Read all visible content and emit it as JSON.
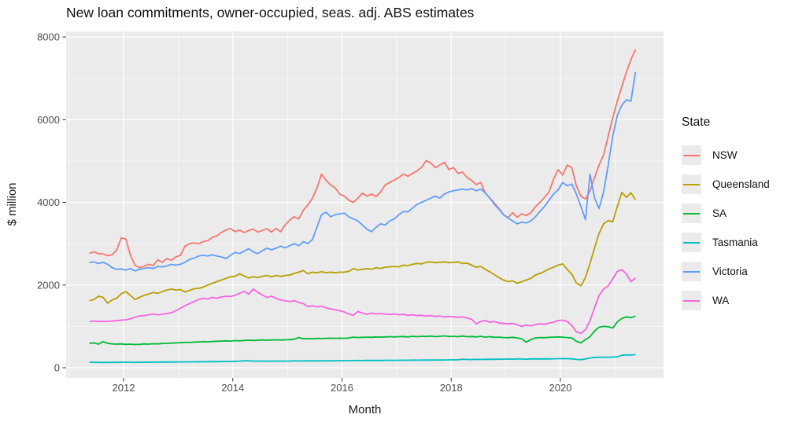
{
  "title": "New loan commitments, owner-occupied, seas. adj. ABS estimates",
  "panel": {
    "bg": "#EBEBEB",
    "grid_color": "#FFFFFF",
    "tick_color": "#333333"
  },
  "axes": {
    "x": {
      "label": "Month",
      "ticks": [
        {
          "v": 2012,
          "label": "2012"
        },
        {
          "v": 2014,
          "label": "2014"
        },
        {
          "v": 2016,
          "label": "2016"
        },
        {
          "v": 2018,
          "label": "2018"
        },
        {
          "v": 2020,
          "label": "2020"
        }
      ],
      "minor": [
        2011,
        2013,
        2015,
        2017,
        2019,
        2021
      ]
    },
    "y": {
      "label": "$ million",
      "ticks": [
        {
          "v": 0,
          "label": "0"
        },
        {
          "v": 2000,
          "label": "2000"
        },
        {
          "v": 4000,
          "label": "4000"
        },
        {
          "v": 6000,
          "label": "6000"
        },
        {
          "v": 8000,
          "label": "8000"
        }
      ],
      "minor": [
        1000,
        3000,
        5000,
        7000
      ]
    }
  },
  "legend": {
    "title": "State",
    "entries": [
      {
        "label": "NSW",
        "color": "#F8766D"
      },
      {
        "label": "Queensland",
        "color": "#B79F00"
      },
      {
        "label": "SA",
        "color": "#00BA38"
      },
      {
        "label": "Tasmania",
        "color": "#00BFC4"
      },
      {
        "label": "Victoria",
        "color": "#619CFF"
      },
      {
        "label": "WA",
        "color": "#F564E2"
      }
    ]
  },
  "chart_data": {
    "type": "line",
    "title": "New loan commitments, owner-occupied, seas. adj. ABS estimates",
    "xlabel": "Month",
    "ylabel": "$ million",
    "x_start": "2011-05",
    "x_end": "2021-05",
    "x_freq": "monthly",
    "xlim": [
      2010.96,
      2021.96
    ],
    "ylim": [
      -280,
      8140
    ],
    "grid": true,
    "legend_position": "right",
    "series": [
      {
        "name": "NSW",
        "color": "#F8766D",
        "values": [
          2770,
          2800,
          2760,
          2750,
          2710,
          2730,
          2850,
          3140,
          3110,
          2720,
          2480,
          2420,
          2450,
          2500,
          2470,
          2610,
          2550,
          2640,
          2600,
          2680,
          2720,
          2940,
          3000,
          3020,
          3000,
          3050,
          3070,
          3150,
          3190,
          3270,
          3330,
          3370,
          3290,
          3330,
          3270,
          3320,
          3350,
          3280,
          3320,
          3360,
          3280,
          3370,
          3290,
          3450,
          3570,
          3650,
          3600,
          3810,
          3940,
          4100,
          4350,
          4680,
          4530,
          4420,
          4350,
          4200,
          4150,
          4050,
          4000,
          4100,
          4220,
          4150,
          4200,
          4140,
          4250,
          4420,
          4480,
          4540,
          4600,
          4680,
          4630,
          4700,
          4760,
          4850,
          5010,
          4950,
          4840,
          4900,
          4970,
          4790,
          4840,
          4700,
          4730,
          4600,
          4530,
          4430,
          4480,
          4220,
          4100,
          3980,
          3850,
          3700,
          3630,
          3750,
          3640,
          3720,
          3680,
          3750,
          3890,
          4000,
          4120,
          4250,
          4560,
          4790,
          4660,
          4900,
          4840,
          4400,
          4150,
          4080,
          4270,
          4600,
          4900,
          5150,
          5600,
          6050,
          6450,
          6800,
          7150,
          7450,
          7700
        ]
      },
      {
        "name": "Queensland",
        "color": "#B79F00",
        "values": [
          1620,
          1650,
          1730,
          1700,
          1560,
          1640,
          1680,
          1790,
          1840,
          1750,
          1650,
          1700,
          1750,
          1780,
          1820,
          1800,
          1840,
          1880,
          1900,
          1880,
          1890,
          1830,
          1870,
          1910,
          1920,
          1950,
          2000,
          2040,
          2080,
          2120,
          2160,
          2200,
          2210,
          2270,
          2220,
          2170,
          2200,
          2180,
          2210,
          2230,
          2200,
          2230,
          2210,
          2230,
          2240,
          2280,
          2310,
          2350,
          2270,
          2310,
          2300,
          2320,
          2300,
          2310,
          2300,
          2310,
          2310,
          2330,
          2400,
          2360,
          2380,
          2400,
          2380,
          2420,
          2400,
          2430,
          2440,
          2450,
          2440,
          2480,
          2470,
          2500,
          2520,
          2510,
          2550,
          2560,
          2540,
          2550,
          2560,
          2540,
          2550,
          2560,
          2520,
          2530,
          2480,
          2430,
          2450,
          2380,
          2320,
          2250,
          2180,
          2120,
          2080,
          2100,
          2040,
          2080,
          2120,
          2160,
          2240,
          2280,
          2330,
          2390,
          2430,
          2480,
          2510,
          2380,
          2260,
          2050,
          1980,
          2180,
          2520,
          2900,
          3250,
          3480,
          3560,
          3530,
          3900,
          4240,
          4120,
          4230,
          4060
        ]
      },
      {
        "name": "SA",
        "color": "#00BA38",
        "values": [
          590,
          600,
          570,
          630,
          590,
          575,
          570,
          575,
          565,
          570,
          560,
          565,
          575,
          570,
          580,
          575,
          585,
          590,
          595,
          600,
          605,
          615,
          610,
          620,
          625,
          630,
          625,
          635,
          640,
          645,
          650,
          645,
          655,
          650,
          660,
          665,
          660,
          665,
          670,
          665,
          670,
          675,
          670,
          675,
          680,
          690,
          730,
          700,
          705,
          700,
          710,
          705,
          710,
          715,
          710,
          715,
          710,
          720,
          740,
          730,
          735,
          740,
          735,
          745,
          740,
          745,
          750,
          745,
          750,
          755,
          745,
          760,
          750,
          760,
          755,
          765,
          750,
          760,
          770,
          755,
          760,
          750,
          765,
          750,
          755,
          745,
          760,
          740,
          750,
          735,
          740,
          730,
          725,
          735,
          720,
          700,
          620,
          680,
          720,
          730,
          725,
          735,
          740,
          745,
          740,
          730,
          720,
          640,
          600,
          680,
          750,
          890,
          980,
          1000,
          990,
          960,
          1110,
          1190,
          1230,
          1210,
          1250
        ]
      },
      {
        "name": "Tasmania",
        "color": "#00BFC4",
        "values": [
          135,
          130,
          132,
          128,
          130,
          132,
          130,
          133,
          135,
          132,
          130,
          133,
          135,
          133,
          136,
          134,
          137,
          138,
          136,
          139,
          140,
          142,
          140,
          143,
          145,
          143,
          146,
          148,
          146,
          149,
          150,
          152,
          155,
          160,
          170,
          165,
          160,
          158,
          162,
          160,
          158,
          160,
          162,
          160,
          162,
          165,
          163,
          166,
          164,
          167,
          165,
          168,
          166,
          169,
          167,
          170,
          172,
          170,
          173,
          175,
          173,
          176,
          174,
          177,
          175,
          178,
          180,
          178,
          180,
          183,
          181,
          184,
          182,
          185,
          187,
          185,
          188,
          186,
          189,
          190,
          192,
          190,
          205,
          200,
          198,
          202,
          200,
          203,
          205,
          203,
          206,
          208,
          210,
          208,
          212,
          210,
          208,
          212,
          214,
          212,
          215,
          213,
          216,
          218,
          220,
          218,
          215,
          200,
          195,
          210,
          235,
          250,
          255,
          252,
          255,
          258,
          262,
          300,
          310,
          305,
          318
        ]
      },
      {
        "name": "Victoria",
        "color": "#619CFF",
        "values": [
          2540,
          2560,
          2520,
          2550,
          2500,
          2420,
          2380,
          2390,
          2360,
          2400,
          2340,
          2380,
          2400,
          2420,
          2400,
          2450,
          2440,
          2460,
          2500,
          2480,
          2500,
          2550,
          2620,
          2650,
          2700,
          2720,
          2700,
          2730,
          2700,
          2680,
          2640,
          2720,
          2790,
          2760,
          2820,
          2880,
          2800,
          2760,
          2830,
          2890,
          2850,
          2890,
          2940,
          2900,
          2950,
          3000,
          2950,
          3050,
          3000,
          3100,
          3400,
          3700,
          3760,
          3650,
          3700,
          3720,
          3740,
          3650,
          3600,
          3550,
          3450,
          3350,
          3290,
          3400,
          3480,
          3450,
          3550,
          3600,
          3700,
          3780,
          3770,
          3860,
          3950,
          4000,
          4050,
          4100,
          4150,
          4100,
          4200,
          4250,
          4280,
          4300,
          4320,
          4300,
          4330,
          4280,
          4320,
          4230,
          4100,
          3950,
          3830,
          3700,
          3620,
          3550,
          3480,
          3520,
          3500,
          3550,
          3650,
          3780,
          3900,
          4050,
          4200,
          4300,
          4480,
          4400,
          4440,
          4200,
          3900,
          3580,
          4680,
          4100,
          3850,
          4250,
          4900,
          5600,
          6100,
          6350,
          6480,
          6450,
          7150
        ]
      },
      {
        "name": "WA",
        "color": "#F564E2",
        "values": [
          1120,
          1130,
          1115,
          1125,
          1120,
          1130,
          1140,
          1150,
          1160,
          1180,
          1220,
          1250,
          1260,
          1280,
          1300,
          1280,
          1290,
          1310,
          1330,
          1380,
          1440,
          1500,
          1550,
          1600,
          1650,
          1680,
          1660,
          1700,
          1680,
          1710,
          1730,
          1720,
          1750,
          1800,
          1846,
          1780,
          1900,
          1820,
          1760,
          1700,
          1730,
          1680,
          1640,
          1620,
          1600,
          1620,
          1580,
          1550,
          1480,
          1500,
          1470,
          1490,
          1450,
          1420,
          1400,
          1380,
          1350,
          1300,
          1270,
          1360,
          1320,
          1290,
          1320,
          1300,
          1310,
          1300,
          1290,
          1300,
          1280,
          1290,
          1270,
          1280,
          1260,
          1270,
          1250,
          1260,
          1240,
          1250,
          1230,
          1240,
          1230,
          1220,
          1230,
          1200,
          1170,
          1060,
          1120,
          1140,
          1100,
          1120,
          1080,
          1070,
          1060,
          1070,
          1040,
          1000,
          1030,
          1010,
          1040,
          1060,
          1050,
          1080,
          1100,
          1140,
          1150,
          1120,
          1020,
          870,
          830,
          920,
          1140,
          1450,
          1750,
          1900,
          1980,
          2150,
          2330,
          2370,
          2270,
          2080,
          2170
        ]
      }
    ]
  }
}
